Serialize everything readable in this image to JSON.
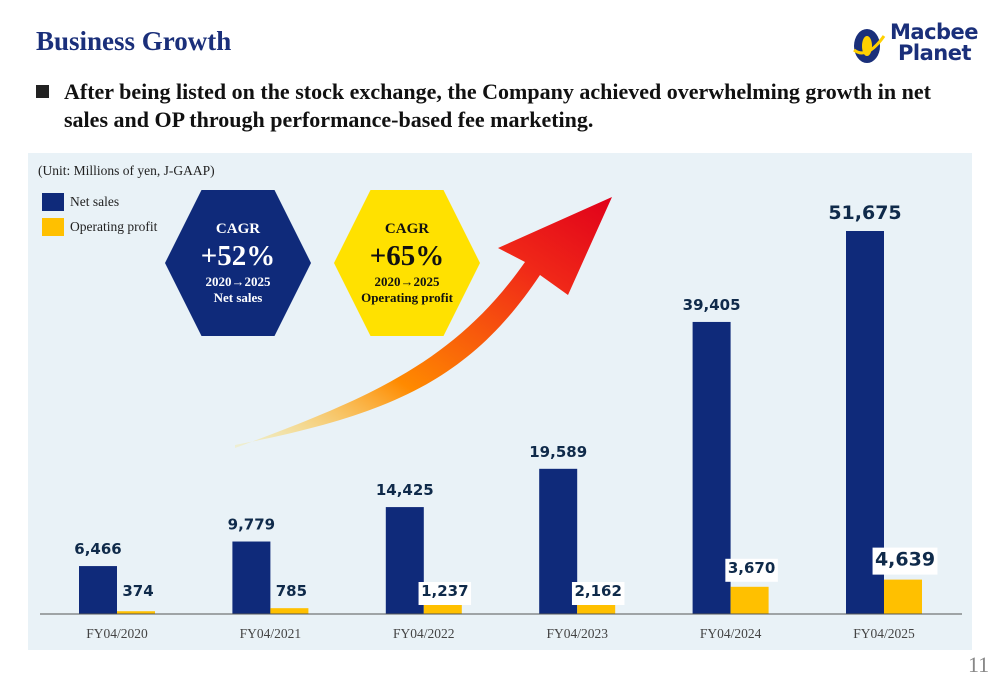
{
  "header": {
    "title": "Business Growth",
    "logo_line1": "Macbee",
    "logo_line2": "Planet"
  },
  "bullet": "After being listed on the stock exchange, the Company achieved overwhelming growth in net sales and OP through performance-based fee marketing.",
  "page_number": "11",
  "colors": {
    "net_sales": "#0f2a7a",
    "operating_profit": "#ffc000",
    "title": "#1a2f7a",
    "panel": "#e9f2f7"
  },
  "cagr_badges": [
    {
      "label": "CAGR",
      "value": "+52%",
      "period": "2020→2025",
      "metric": "Net sales"
    },
    {
      "label": "CAGR",
      "value": "+65%",
      "period": "2020→2025",
      "metric": "Operating profit"
    }
  ],
  "chart_data": {
    "type": "bar",
    "unit_note": "(Unit: Millions of yen, J-GAAP)",
    "categories": [
      "FY04/2020",
      "FY04/2021",
      "FY04/2022",
      "FY04/2023",
      "FY04/2024",
      "FY04/2025"
    ],
    "series": [
      {
        "name": "Net sales",
        "values": [
          6466,
          9779,
          14425,
          19589,
          39405,
          51675
        ],
        "labels": [
          "6,466",
          "9,779",
          "14,425",
          "19,589",
          "39,405",
          "51,675"
        ]
      },
      {
        "name": "Operating profit",
        "values": [
          374,
          785,
          1237,
          2162,
          3670,
          4639
        ],
        "labels": [
          "374",
          "785",
          "1,237",
          "2,162",
          "3,670",
          "4,639"
        ]
      }
    ],
    "ylim": [
      0,
      51675
    ],
    "grid": false,
    "legend": "top-left",
    "xlabel": "",
    "ylabel": ""
  }
}
